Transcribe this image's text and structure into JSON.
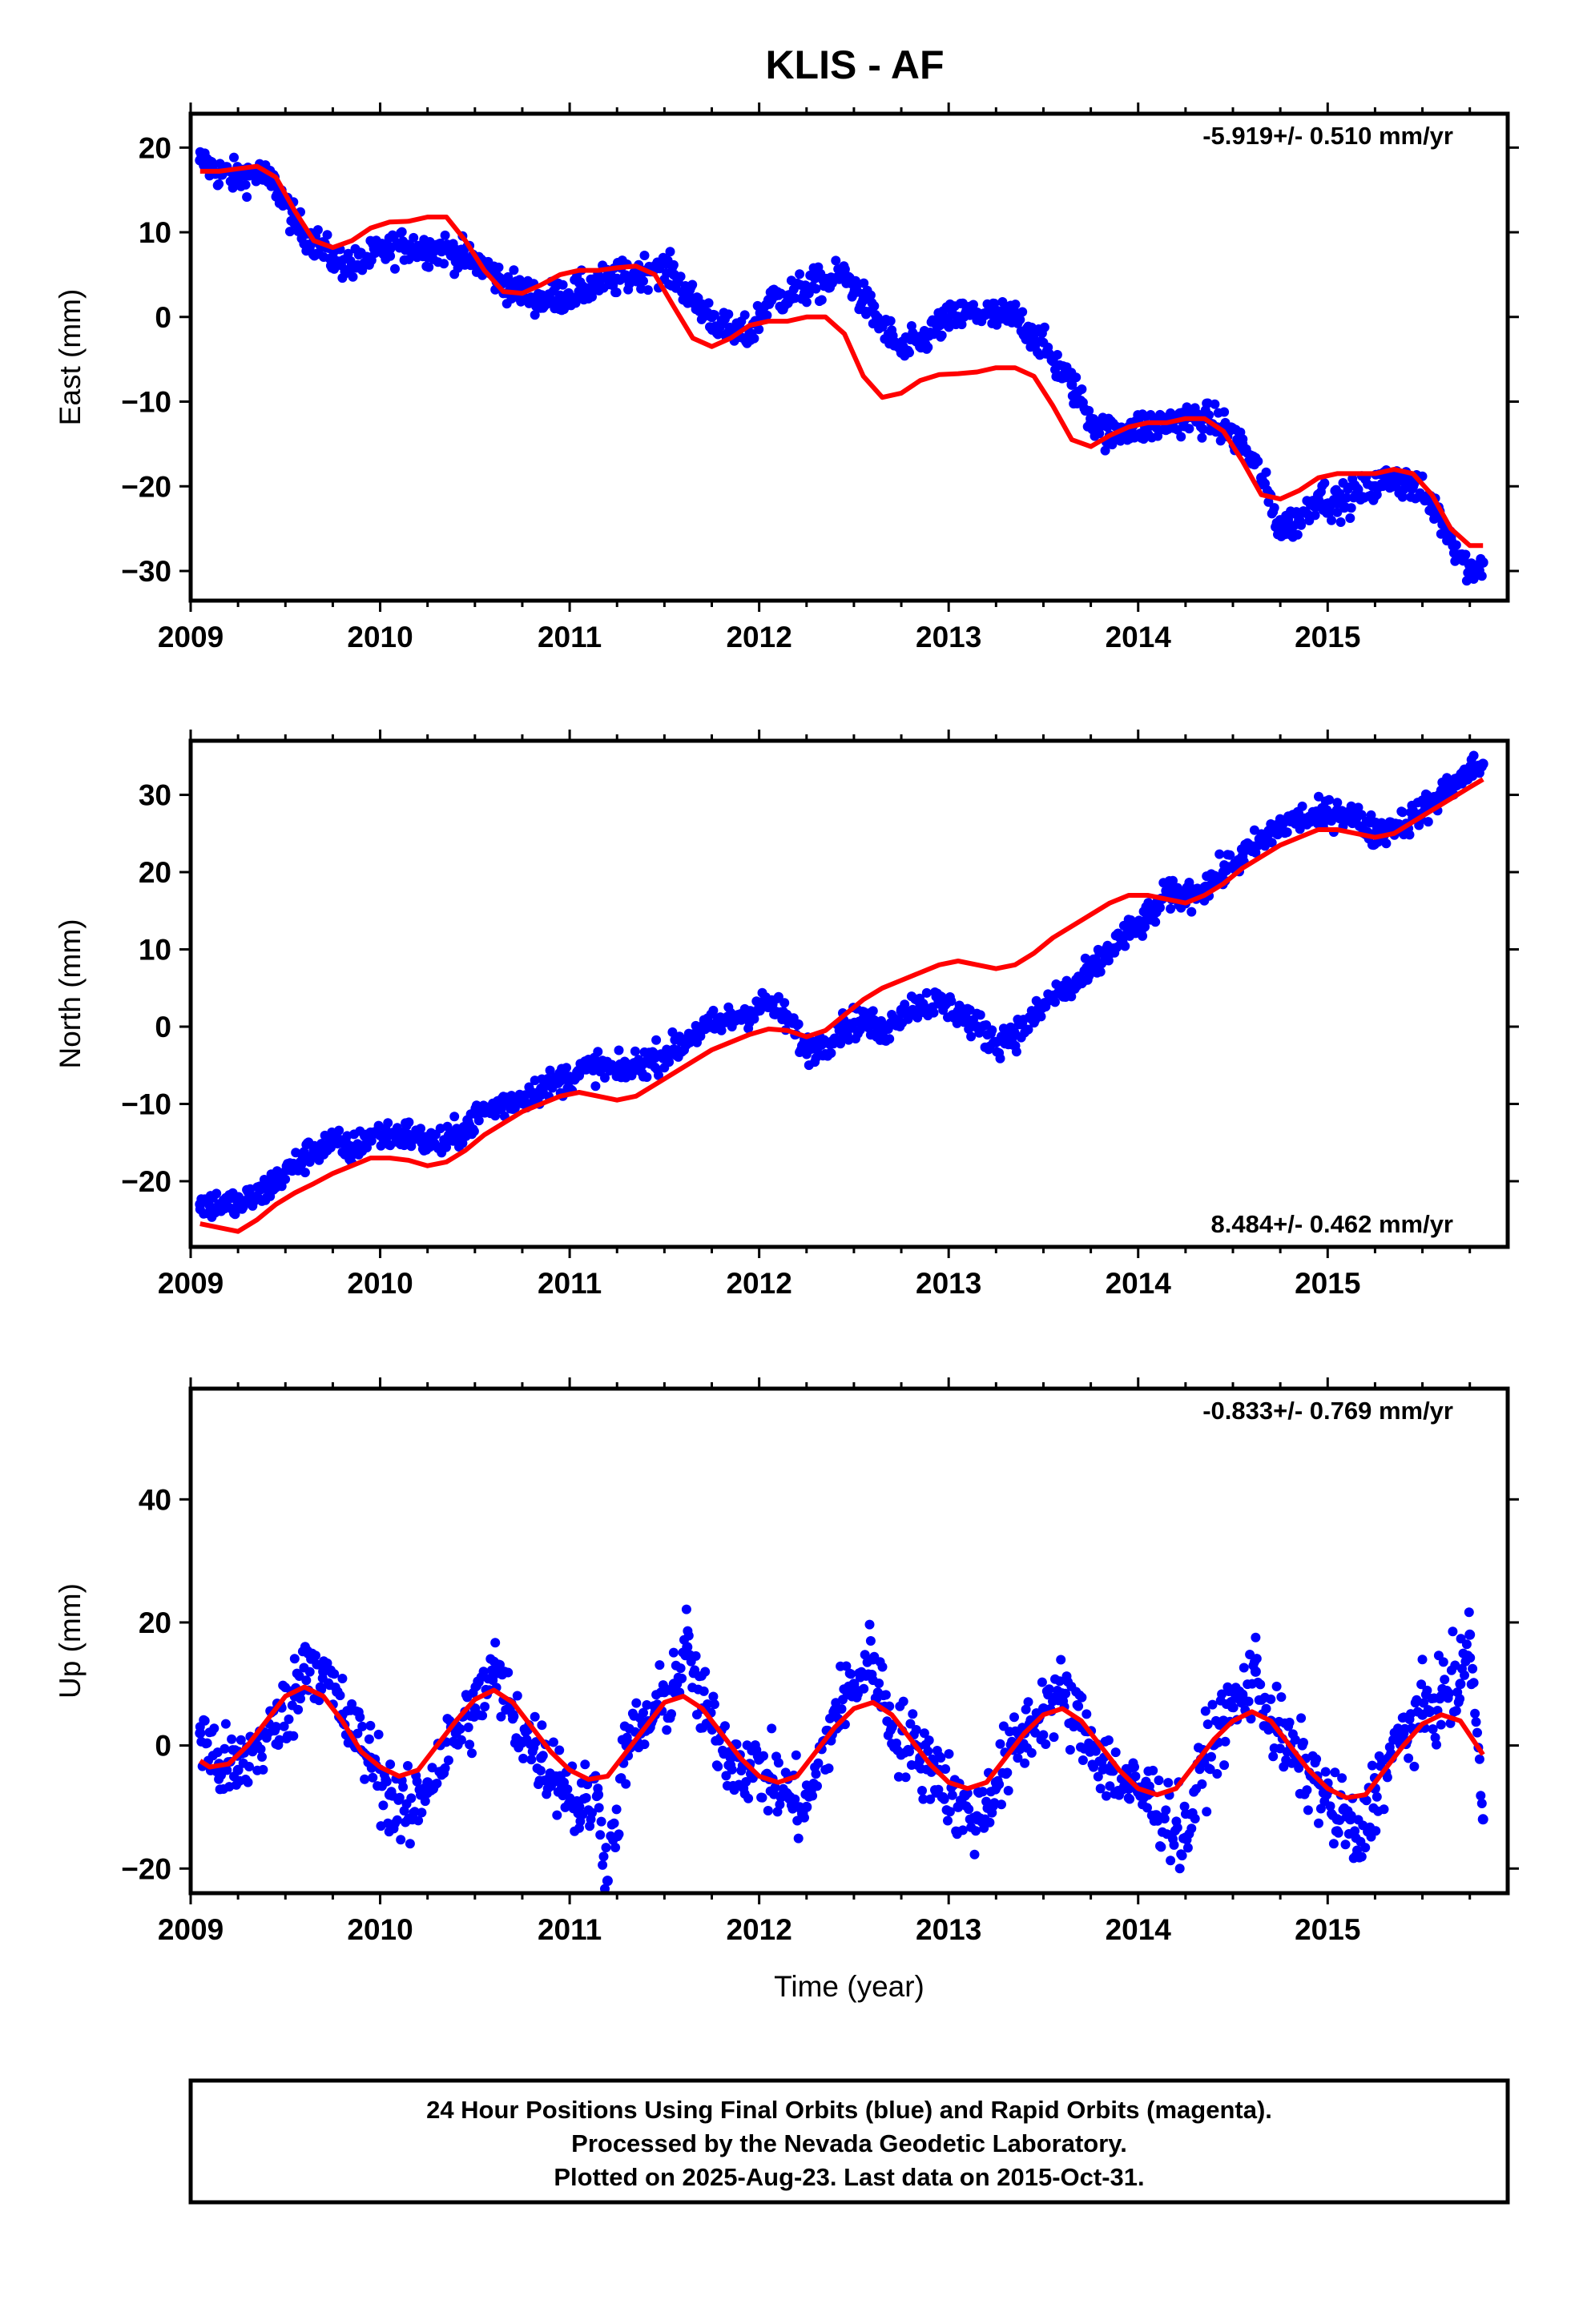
{
  "title": "KLIS - AF",
  "colors": {
    "final_orbits": "#0000ff",
    "model_fit": "#ff0000",
    "frame": "#000000"
  },
  "chart_data": [
    {
      "type": "scatter",
      "ylabel": "East (mm)",
      "xlim": [
        2009.0,
        2015.95
      ],
      "ylim": [
        -33.5,
        24.0
      ],
      "yticks": [
        -30,
        -20,
        -10,
        0,
        10,
        20
      ],
      "xticks": [
        2009,
        2010,
        2011,
        2012,
        2013,
        2014,
        2015
      ],
      "rate_text": "-5.919+/- 0.510 mm/yr",
      "rate_position": "top-right",
      "series": [
        {
          "kind": "points",
          "x": [
            2009.05,
            2009.15,
            2009.25,
            2009.35,
            2009.45,
            2009.55,
            2009.65,
            2009.75,
            2009.85,
            2009.95,
            2010.05,
            2010.15,
            2010.25,
            2010.35,
            2010.45,
            2010.55,
            2010.65,
            2010.75,
            2010.85,
            2010.95,
            2011.05,
            2011.15,
            2011.25,
            2011.35,
            2011.45,
            2011.55,
            2011.65,
            2011.75,
            2011.85,
            2011.95,
            2012.05,
            2012.15,
            2012.25,
            2012.35,
            2012.45,
            2012.55,
            2012.65,
            2012.75,
            2012.85,
            2012.95,
            2013.05,
            2013.15,
            2013.25,
            2013.35,
            2013.45,
            2013.55,
            2013.65,
            2013.75,
            2013.85,
            2013.95,
            2014.05,
            2014.15,
            2014.25,
            2014.35,
            2014.45,
            2014.55,
            2014.65,
            2014.75,
            2014.85,
            2014.95,
            2015.05,
            2015.15,
            2015.25,
            2015.35,
            2015.45,
            2015.55,
            2015.65,
            2015.75,
            2015.82
          ],
          "y": [
            18.5,
            17,
            16.5,
            17,
            15.5,
            11,
            9,
            7,
            6,
            7,
            8,
            8.5,
            8,
            8,
            7,
            6,
            4,
            3,
            2,
            2.5,
            3,
            4,
            4.5,
            5,
            6,
            5,
            2,
            0,
            -2,
            -2,
            2,
            2.5,
            3.5,
            4,
            5,
            2,
            -1,
            -4,
            -3,
            -1,
            0,
            0.5,
            0,
            0,
            -2,
            -5,
            -8,
            -12,
            -14,
            -13,
            -13,
            -12.5,
            -12,
            -12,
            -13,
            -15,
            -19,
            -25,
            -24,
            -21,
            -22,
            -21,
            -20,
            -19,
            -20,
            -22,
            -26,
            -30,
            -29
          ]
        },
        {
          "kind": "line",
          "x": [
            2009.05,
            2009.15,
            2009.25,
            2009.35,
            2009.45,
            2009.55,
            2009.65,
            2009.75,
            2009.85,
            2009.95,
            2010.05,
            2010.15,
            2010.25,
            2010.35,
            2010.45,
            2010.55,
            2010.65,
            2010.75,
            2010.85,
            2010.95,
            2011.05,
            2011.15,
            2011.25,
            2011.35,
            2011.45,
            2011.55,
            2011.65,
            2011.75,
            2011.85,
            2011.95,
            2012.05,
            2012.15,
            2012.25,
            2012.35,
            2012.45,
            2012.55,
            2012.65,
            2012.75,
            2012.85,
            2012.95,
            2013.05,
            2013.15,
            2013.25,
            2013.35,
            2013.45,
            2013.55,
            2013.65,
            2013.75,
            2013.85,
            2013.95,
            2014.05,
            2014.15,
            2014.25,
            2014.35,
            2014.45,
            2014.55,
            2014.65,
            2014.75,
            2014.85,
            2014.95,
            2015.05,
            2015.15,
            2015.25,
            2015.35,
            2015.45,
            2015.55,
            2015.65,
            2015.75,
            2015.82
          ],
          "y": [
            17.2,
            17.2,
            17.5,
            17.8,
            16.5,
            12.5,
            9,
            8.2,
            9,
            10.5,
            11.2,
            11.3,
            11.8,
            11.8,
            9,
            5.5,
            3,
            2.8,
            3.8,
            5,
            5.5,
            5.5,
            5.8,
            6,
            5,
            1.2,
            -2.5,
            -3.5,
            -2.5,
            -1,
            -0.5,
            -0.5,
            0,
            0,
            -2,
            -7,
            -9.5,
            -9,
            -7.5,
            -6.8,
            -6.7,
            -6.5,
            -6,
            -6,
            -7,
            -10.5,
            -14.5,
            -15.3,
            -14,
            -13,
            -12.5,
            -12.5,
            -12,
            -12,
            -13.5,
            -17,
            -21,
            -21.5,
            -20.5,
            -19,
            -18.5,
            -18.5,
            -18.5,
            -18,
            -18.5,
            -21,
            -25,
            -27,
            -27
          ]
        }
      ]
    },
    {
      "type": "scatter",
      "ylabel": "North (mm)",
      "xlim": [
        2009.0,
        2015.95
      ],
      "ylim": [
        -28.5,
        37.0
      ],
      "yticks": [
        -20,
        -10,
        0,
        10,
        20,
        30
      ],
      "xticks": [
        2009,
        2010,
        2011,
        2012,
        2013,
        2014,
        2015
      ],
      "rate_text": "8.484+/- 0.462 mm/yr",
      "rate_position": "bottom-right",
      "series": [
        {
          "kind": "points",
          "x": [
            2009.05,
            2009.15,
            2009.25,
            2009.35,
            2009.45,
            2009.55,
            2009.65,
            2009.75,
            2009.85,
            2009.95,
            2010.05,
            2010.15,
            2010.25,
            2010.35,
            2010.45,
            2010.55,
            2010.65,
            2010.75,
            2010.85,
            2010.95,
            2011.05,
            2011.15,
            2011.25,
            2011.35,
            2011.45,
            2011.55,
            2011.65,
            2011.75,
            2011.85,
            2011.95,
            2012.05,
            2012.15,
            2012.25,
            2012.35,
            2012.45,
            2012.55,
            2012.65,
            2012.75,
            2012.85,
            2012.95,
            2013.05,
            2013.15,
            2013.25,
            2013.35,
            2013.45,
            2013.55,
            2013.65,
            2013.75,
            2013.85,
            2013.95,
            2014.05,
            2014.15,
            2014.25,
            2014.35,
            2014.45,
            2014.55,
            2014.65,
            2014.75,
            2014.85,
            2014.95,
            2015.05,
            2015.15,
            2015.25,
            2015.35,
            2015.45,
            2015.55,
            2015.65,
            2015.75,
            2015.82
          ],
          "y": [
            -23,
            -23,
            -23,
            -22,
            -20,
            -18,
            -16,
            -15,
            -16,
            -14,
            -14,
            -14,
            -15,
            -15,
            -13,
            -11,
            -10,
            -9,
            -8,
            -7,
            -6,
            -5,
            -6,
            -5,
            -4,
            -3,
            -1,
            0,
            1,
            2,
            3,
            1,
            -3,
            -2,
            0,
            1,
            -1,
            2,
            3,
            3,
            2,
            0,
            -2,
            -1,
            1,
            4,
            5,
            7,
            10,
            12,
            14,
            17,
            17,
            18,
            20,
            22,
            24,
            26,
            27,
            27,
            28,
            27,
            25,
            26,
            27,
            29,
            31,
            33,
            34
          ]
        },
        {
          "kind": "line",
          "x": [
            2009.05,
            2009.15,
            2009.25,
            2009.35,
            2009.45,
            2009.55,
            2009.65,
            2009.75,
            2009.85,
            2009.95,
            2010.05,
            2010.15,
            2010.25,
            2010.35,
            2010.45,
            2010.55,
            2010.65,
            2010.75,
            2010.85,
            2010.95,
            2011.05,
            2011.15,
            2011.25,
            2011.35,
            2011.45,
            2011.55,
            2011.65,
            2011.75,
            2011.85,
            2011.95,
            2012.05,
            2012.15,
            2012.25,
            2012.35,
            2012.45,
            2012.55,
            2012.65,
            2012.75,
            2012.85,
            2012.95,
            2013.05,
            2013.15,
            2013.25,
            2013.35,
            2013.45,
            2013.55,
            2013.65,
            2013.75,
            2013.85,
            2013.95,
            2014.05,
            2014.15,
            2014.25,
            2014.35,
            2014.45,
            2014.55,
            2014.65,
            2014.75,
            2014.85,
            2014.95,
            2015.05,
            2015.15,
            2015.25,
            2015.35,
            2015.45,
            2015.55,
            2015.65,
            2015.75,
            2015.82
          ],
          "y": [
            -25.5,
            -26,
            -26.5,
            -25,
            -23,
            -21.5,
            -20.3,
            -19,
            -18,
            -17,
            -17,
            -17.3,
            -18,
            -17.5,
            -16,
            -14,
            -12.5,
            -11,
            -10,
            -9,
            -8.5,
            -9,
            -9.5,
            -9,
            -7.5,
            -6,
            -4.5,
            -3,
            -2,
            -1,
            -0.3,
            -0.5,
            -1.3,
            -0.5,
            1.5,
            3.5,
            5,
            6,
            7,
            8,
            8.5,
            8,
            7.5,
            8,
            9.5,
            11.5,
            13,
            14.5,
            16,
            17,
            17,
            16.5,
            16,
            17,
            18.5,
            20.5,
            22,
            23.5,
            24.5,
            25.5,
            25.5,
            25,
            24.5,
            25,
            26.5,
            28,
            29.5,
            31,
            32
          ]
        }
      ]
    },
    {
      "type": "scatter",
      "ylabel": "Up (mm)",
      "xlabel": "Time (year)",
      "xlim": [
        2009.0,
        2015.95
      ],
      "ylim": [
        -24.0,
        58.0
      ],
      "yticks": [
        -20,
        0,
        20,
        40
      ],
      "xticks": [
        2009,
        2010,
        2011,
        2012,
        2013,
        2014,
        2015
      ],
      "rate_text": "-0.833+/- 0.769 mm/yr",
      "rate_position": "top-right",
      "series": [
        {
          "kind": "points",
          "x": [
            2009.05,
            2009.15,
            2009.25,
            2009.35,
            2009.45,
            2009.55,
            2009.62,
            2009.7,
            2009.8,
            2009.95,
            2010.05,
            2010.15,
            2010.25,
            2010.4,
            2010.5,
            2010.6,
            2010.7,
            2010.85,
            2010.95,
            2011.05,
            2011.15,
            2011.2,
            2011.3,
            2011.45,
            2011.55,
            2011.62,
            2011.7,
            2011.85,
            2011.95,
            2012.05,
            2012.15,
            2012.25,
            2012.4,
            2012.5,
            2012.6,
            2012.7,
            2012.85,
            2012.95,
            2013.05,
            2013.15,
            2013.25,
            2013.4,
            2013.5,
            2013.6,
            2013.7,
            2013.85,
            2013.95,
            2014.05,
            2014.25,
            2014.35,
            2014.45,
            2014.55,
            2014.62,
            2014.7,
            2014.85,
            2014.95,
            2015.05,
            2015.12,
            2015.15,
            2015.25,
            2015.4,
            2015.5,
            2015.6,
            2015.7,
            2015.75,
            2015.82
          ],
          "y": [
            2,
            -3,
            -4,
            0,
            3,
            8,
            15,
            12,
            5,
            -2,
            -8,
            -12,
            -6,
            2,
            6,
            12,
            5,
            -2,
            -5,
            -10,
            -8,
            -22,
            0,
            5,
            10,
            16,
            6,
            -2,
            -3,
            -5,
            -8,
            -10,
            5,
            10,
            14,
            3,
            -2,
            -4,
            -10,
            -12,
            -6,
            2,
            6,
            8,
            3,
            -4,
            -7,
            -8,
            -15,
            -2,
            4,
            8,
            12,
            4,
            -3,
            -6,
            -12,
            -12,
            -18,
            -7,
            2,
            5,
            8,
            10,
            18,
            -12
          ]
        },
        {
          "kind": "line",
          "x": [
            2009.05,
            2009.1,
            2009.2,
            2009.3,
            2009.4,
            2009.5,
            2009.6,
            2009.7,
            2009.8,
            2009.9,
            2010.0,
            2010.1,
            2010.2,
            2010.3,
            2010.4,
            2010.5,
            2010.6,
            2010.7,
            2010.8,
            2010.9,
            2011.0,
            2011.1,
            2011.2,
            2011.3,
            2011.4,
            2011.5,
            2011.6,
            2011.7,
            2011.8,
            2011.9,
            2012.0,
            2012.1,
            2012.2,
            2012.3,
            2012.4,
            2012.5,
            2012.6,
            2012.7,
            2012.8,
            2012.9,
            2013.0,
            2013.1,
            2013.2,
            2013.3,
            2013.4,
            2013.5,
            2013.6,
            2013.7,
            2013.8,
            2013.9,
            2014.0,
            2014.1,
            2014.2,
            2014.3,
            2014.4,
            2014.5,
            2014.6,
            2014.7,
            2014.8,
            2014.9,
            2015.0,
            2015.1,
            2015.2,
            2015.3,
            2015.4,
            2015.5,
            2015.6,
            2015.7,
            2015.82
          ],
          "y": [
            -2.5,
            -3.5,
            -3,
            0,
            4,
            8,
            9.5,
            8,
            4,
            -1,
            -3.5,
            -5,
            -4,
            0,
            4,
            7.5,
            9,
            7,
            3,
            -1,
            -4,
            -5.5,
            -5,
            -1,
            3,
            7,
            8,
            6,
            2,
            -2,
            -5,
            -6,
            -5,
            -1,
            3,
            6,
            7,
            5,
            1,
            -3,
            -6,
            -7,
            -6,
            -2,
            2,
            5,
            6,
            4,
            0,
            -4,
            -7,
            -8,
            -7,
            -3,
            1,
            4,
            5.5,
            4,
            0,
            -4,
            -7,
            -8.5,
            -8,
            -4,
            0,
            3.5,
            5,
            4,
            -1.5
          ]
        }
      ]
    }
  ],
  "footer": {
    "line1": "24 Hour Positions Using Final Orbits (blue) and Rapid Orbits (magenta).",
    "line2": "Processed by the Nevada Geodetic Laboratory.",
    "line3": "Plotted on 2025-Aug-23. Last data on 2015-Oct-31."
  }
}
